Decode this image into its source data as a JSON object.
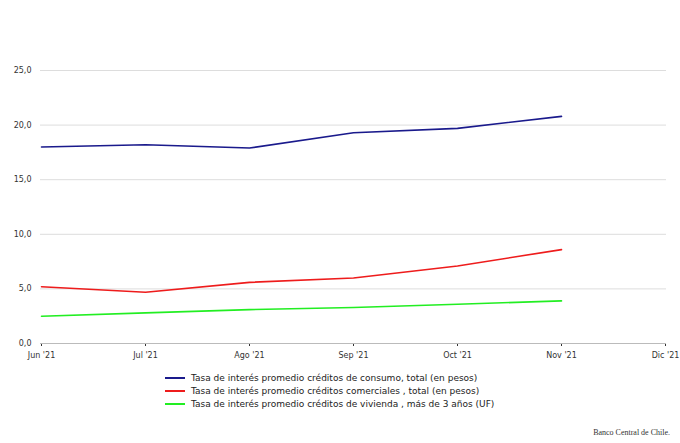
{
  "chart_data": {
    "type": "line",
    "categories": [
      "Jun '21",
      "Jul '21",
      "Ago '21",
      "Sep '21",
      "Oct '21",
      "Nov '21",
      "Dic '21"
    ],
    "series": [
      {
        "name": "Tasa de interés promedio créditos de consumo, total (en pesos)",
        "color": "#1a1a8c",
        "values": [
          18.0,
          18.2,
          17.9,
          19.3,
          19.7,
          20.8,
          null
        ]
      },
      {
        "name": "Tasa de interés promedio créditos comerciales , total (en pesos)",
        "color": "#ee1c1c",
        "values": [
          5.2,
          4.7,
          5.6,
          6.0,
          7.1,
          8.6,
          null
        ]
      },
      {
        "name": "Tasa de interés promedio créditos de vivienda , más de 3 años (UF)",
        "color": "#22ee22",
        "values": [
          2.5,
          2.8,
          3.1,
          3.3,
          3.6,
          3.9,
          null
        ]
      }
    ],
    "ylim": [
      0,
      25
    ],
    "yticks": [
      {
        "value": 0,
        "label": "0,0"
      },
      {
        "value": 5,
        "label": "5,0"
      },
      {
        "value": 10,
        "label": "10,0"
      },
      {
        "value": 15,
        "label": "15,0"
      },
      {
        "value": 20,
        "label": "20,0"
      },
      {
        "value": 25,
        "label": "25,0"
      }
    ],
    "grid": true,
    "legend": "bottom",
    "caption": "Banco Central de Chile."
  }
}
